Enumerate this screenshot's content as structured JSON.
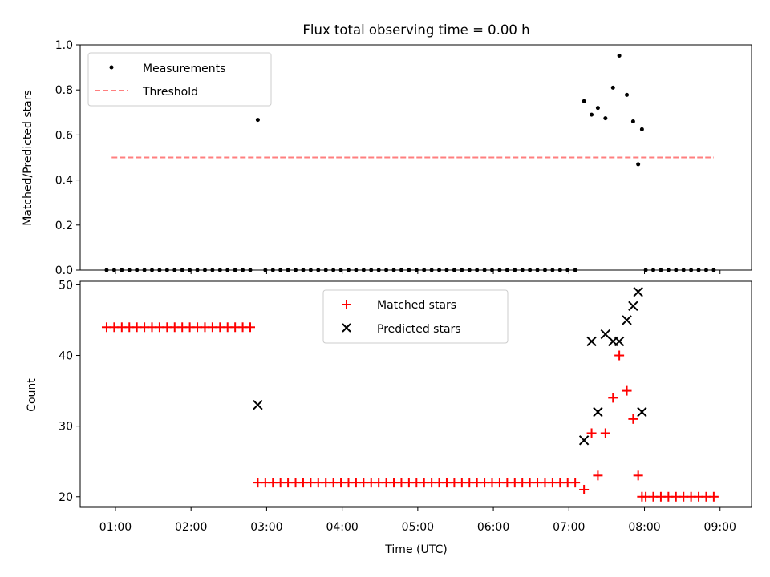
{
  "chart_data": [
    {
      "type": "scatter",
      "title": "Flux total observing time = 0.00 h",
      "xlabel": "",
      "ylabel": "Matched/Predicted stars",
      "ylim": [
        0,
        1.0
      ],
      "yticks": [
        "0.0",
        "0.2",
        "0.4",
        "0.6",
        "0.8",
        "1.0"
      ],
      "ytick_values": [
        0,
        0.2,
        0.4,
        0.6,
        0.8,
        1.0
      ],
      "legend_position": "upper-left",
      "series": [
        {
          "name": "Measurements",
          "marker": "dot",
          "color": "#000000",
          "points": [
            {
              "x": "00:53",
              "y": 0
            },
            {
              "x": "00:59",
              "y": 0
            },
            {
              "x": "01:05",
              "y": 0
            },
            {
              "x": "01:11",
              "y": 0
            },
            {
              "x": "01:17",
              "y": 0
            },
            {
              "x": "01:23",
              "y": 0
            },
            {
              "x": "01:29",
              "y": 0
            },
            {
              "x": "01:35",
              "y": 0
            },
            {
              "x": "01:41",
              "y": 0
            },
            {
              "x": "01:47",
              "y": 0
            },
            {
              "x": "01:53",
              "y": 0
            },
            {
              "x": "01:59",
              "y": 0
            },
            {
              "x": "02:05",
              "y": 0
            },
            {
              "x": "02:11",
              "y": 0
            },
            {
              "x": "02:17",
              "y": 0
            },
            {
              "x": "02:23",
              "y": 0
            },
            {
              "x": "02:29",
              "y": 0
            },
            {
              "x": "02:35",
              "y": 0
            },
            {
              "x": "02:41",
              "y": 0
            },
            {
              "x": "02:47",
              "y": 0
            },
            {
              "x": "02:53",
              "y": 0.667
            },
            {
              "x": "02:59",
              "y": 0
            },
            {
              "x": "03:05",
              "y": 0
            },
            {
              "x": "03:11",
              "y": 0
            },
            {
              "x": "03:17",
              "y": 0
            },
            {
              "x": "03:23",
              "y": 0
            },
            {
              "x": "03:29",
              "y": 0
            },
            {
              "x": "03:35",
              "y": 0
            },
            {
              "x": "03:41",
              "y": 0
            },
            {
              "x": "03:47",
              "y": 0
            },
            {
              "x": "03:53",
              "y": 0
            },
            {
              "x": "03:59",
              "y": 0
            },
            {
              "x": "04:05",
              "y": 0
            },
            {
              "x": "04:11",
              "y": 0
            },
            {
              "x": "04:17",
              "y": 0
            },
            {
              "x": "04:23",
              "y": 0
            },
            {
              "x": "04:29",
              "y": 0
            },
            {
              "x": "04:35",
              "y": 0
            },
            {
              "x": "04:41",
              "y": 0
            },
            {
              "x": "04:47",
              "y": 0
            },
            {
              "x": "04:53",
              "y": 0
            },
            {
              "x": "04:59",
              "y": 0
            },
            {
              "x": "05:05",
              "y": 0
            },
            {
              "x": "05:11",
              "y": 0
            },
            {
              "x": "05:17",
              "y": 0
            },
            {
              "x": "05:23",
              "y": 0
            },
            {
              "x": "05:29",
              "y": 0
            },
            {
              "x": "05:35",
              "y": 0
            },
            {
              "x": "05:41",
              "y": 0
            },
            {
              "x": "05:47",
              "y": 0
            },
            {
              "x": "05:53",
              "y": 0
            },
            {
              "x": "05:59",
              "y": 0
            },
            {
              "x": "06:05",
              "y": 0
            },
            {
              "x": "06:11",
              "y": 0
            },
            {
              "x": "06:17",
              "y": 0
            },
            {
              "x": "06:23",
              "y": 0
            },
            {
              "x": "06:29",
              "y": 0
            },
            {
              "x": "06:35",
              "y": 0
            },
            {
              "x": "06:41",
              "y": 0
            },
            {
              "x": "06:47",
              "y": 0
            },
            {
              "x": "06:53",
              "y": 0
            },
            {
              "x": "06:59",
              "y": 0
            },
            {
              "x": "07:05",
              "y": 0
            },
            {
              "x": "07:12",
              "y": 0.75
            },
            {
              "x": "07:18",
              "y": 0.69
            },
            {
              "x": "07:23",
              "y": 0.72
            },
            {
              "x": "07:29",
              "y": 0.674
            },
            {
              "x": "07:35",
              "y": 0.81
            },
            {
              "x": "07:40",
              "y": 0.952
            },
            {
              "x": "07:46",
              "y": 0.778
            },
            {
              "x": "07:51",
              "y": 0.66
            },
            {
              "x": "07:55",
              "y": 0.47
            },
            {
              "x": "07:58",
              "y": 0.625
            },
            {
              "x": "08:01",
              "y": 0
            },
            {
              "x": "08:07",
              "y": 0
            },
            {
              "x": "08:13",
              "y": 0
            },
            {
              "x": "08:19",
              "y": 0
            },
            {
              "x": "08:25",
              "y": 0
            },
            {
              "x": "08:31",
              "y": 0
            },
            {
              "x": "08:37",
              "y": 0
            },
            {
              "x": "08:43",
              "y": 0
            },
            {
              "x": "08:49",
              "y": 0
            },
            {
              "x": "08:55",
              "y": 0
            }
          ]
        },
        {
          "name": "Threshold",
          "type": "line",
          "style": "dashed",
          "color": "#ff7f7f",
          "points": [
            {
              "x": "00:57",
              "y": 0.5
            },
            {
              "x": "08:55",
              "y": 0.5
            }
          ]
        }
      ]
    },
    {
      "type": "scatter",
      "title": "",
      "xlabel": "Time (UTC)",
      "ylabel": "Count",
      "ylim": [
        18.5,
        50.5
      ],
      "yticks": [
        "20",
        "30",
        "40",
        "50"
      ],
      "ytick_values": [
        20,
        30,
        40,
        50
      ],
      "xlim": [
        "00:32",
        "09:25"
      ],
      "xticks": [
        "01:00",
        "02:00",
        "03:00",
        "04:00",
        "05:00",
        "06:00",
        "07:00",
        "08:00",
        "09:00"
      ],
      "legend_position": "upper-center",
      "series": [
        {
          "name": "Matched stars",
          "marker": "plus",
          "color": "#ff0000",
          "points": [
            {
              "x": "00:53",
              "y": 44
            },
            {
              "x": "00:59",
              "y": 44
            },
            {
              "x": "01:05",
              "y": 44
            },
            {
              "x": "01:11",
              "y": 44
            },
            {
              "x": "01:17",
              "y": 44
            },
            {
              "x": "01:23",
              "y": 44
            },
            {
              "x": "01:29",
              "y": 44
            },
            {
              "x": "01:35",
              "y": 44
            },
            {
              "x": "01:41",
              "y": 44
            },
            {
              "x": "01:47",
              "y": 44
            },
            {
              "x": "01:53",
              "y": 44
            },
            {
              "x": "01:59",
              "y": 44
            },
            {
              "x": "02:05",
              "y": 44
            },
            {
              "x": "02:11",
              "y": 44
            },
            {
              "x": "02:17",
              "y": 44
            },
            {
              "x": "02:23",
              "y": 44
            },
            {
              "x": "02:29",
              "y": 44
            },
            {
              "x": "02:35",
              "y": 44
            },
            {
              "x": "02:41",
              "y": 44
            },
            {
              "x": "02:47",
              "y": 44
            },
            {
              "x": "02:53",
              "y": 22
            },
            {
              "x": "02:59",
              "y": 22
            },
            {
              "x": "03:05",
              "y": 22
            },
            {
              "x": "03:11",
              "y": 22
            },
            {
              "x": "03:17",
              "y": 22
            },
            {
              "x": "03:23",
              "y": 22
            },
            {
              "x": "03:29",
              "y": 22
            },
            {
              "x": "03:35",
              "y": 22
            },
            {
              "x": "03:41",
              "y": 22
            },
            {
              "x": "03:47",
              "y": 22
            },
            {
              "x": "03:53",
              "y": 22
            },
            {
              "x": "03:59",
              "y": 22
            },
            {
              "x": "04:05",
              "y": 22
            },
            {
              "x": "04:11",
              "y": 22
            },
            {
              "x": "04:17",
              "y": 22
            },
            {
              "x": "04:23",
              "y": 22
            },
            {
              "x": "04:29",
              "y": 22
            },
            {
              "x": "04:35",
              "y": 22
            },
            {
              "x": "04:41",
              "y": 22
            },
            {
              "x": "04:47",
              "y": 22
            },
            {
              "x": "04:53",
              "y": 22
            },
            {
              "x": "04:59",
              "y": 22
            },
            {
              "x": "05:05",
              "y": 22
            },
            {
              "x": "05:11",
              "y": 22
            },
            {
              "x": "05:17",
              "y": 22
            },
            {
              "x": "05:23",
              "y": 22
            },
            {
              "x": "05:29",
              "y": 22
            },
            {
              "x": "05:35",
              "y": 22
            },
            {
              "x": "05:41",
              "y": 22
            },
            {
              "x": "05:47",
              "y": 22
            },
            {
              "x": "05:53",
              "y": 22
            },
            {
              "x": "05:59",
              "y": 22
            },
            {
              "x": "06:05",
              "y": 22
            },
            {
              "x": "06:11",
              "y": 22
            },
            {
              "x": "06:17",
              "y": 22
            },
            {
              "x": "06:23",
              "y": 22
            },
            {
              "x": "06:29",
              "y": 22
            },
            {
              "x": "06:35",
              "y": 22
            },
            {
              "x": "06:41",
              "y": 22
            },
            {
              "x": "06:47",
              "y": 22
            },
            {
              "x": "06:53",
              "y": 22
            },
            {
              "x": "06:59",
              "y": 22
            },
            {
              "x": "07:05",
              "y": 22
            },
            {
              "x": "07:12",
              "y": 21
            },
            {
              "x": "07:18",
              "y": 29
            },
            {
              "x": "07:23",
              "y": 23
            },
            {
              "x": "07:29",
              "y": 29
            },
            {
              "x": "07:35",
              "y": 34
            },
            {
              "x": "07:40",
              "y": 40
            },
            {
              "x": "07:46",
              "y": 35
            },
            {
              "x": "07:51",
              "y": 31
            },
            {
              "x": "07:55",
              "y": 23
            },
            {
              "x": "07:58",
              "y": 20
            },
            {
              "x": "08:01",
              "y": 20
            },
            {
              "x": "08:07",
              "y": 20
            },
            {
              "x": "08:13",
              "y": 20
            },
            {
              "x": "08:19",
              "y": 20
            },
            {
              "x": "08:25",
              "y": 20
            },
            {
              "x": "08:31",
              "y": 20
            },
            {
              "x": "08:37",
              "y": 20
            },
            {
              "x": "08:43",
              "y": 20
            },
            {
              "x": "08:49",
              "y": 20
            },
            {
              "x": "08:55",
              "y": 20
            }
          ]
        },
        {
          "name": "Predicted stars",
          "marker": "x",
          "color": "#000000",
          "points": [
            {
              "x": "02:53",
              "y": 33
            },
            {
              "x": "07:12",
              "y": 28
            },
            {
              "x": "07:18",
              "y": 42
            },
            {
              "x": "07:23",
              "y": 32
            },
            {
              "x": "07:29",
              "y": 43
            },
            {
              "x": "07:35",
              "y": 42
            },
            {
              "x": "07:40",
              "y": 42
            },
            {
              "x": "07:46",
              "y": 45
            },
            {
              "x": "07:51",
              "y": 47
            },
            {
              "x": "07:55",
              "y": 49
            },
            {
              "x": "07:58",
              "y": 32
            }
          ]
        }
      ]
    }
  ]
}
